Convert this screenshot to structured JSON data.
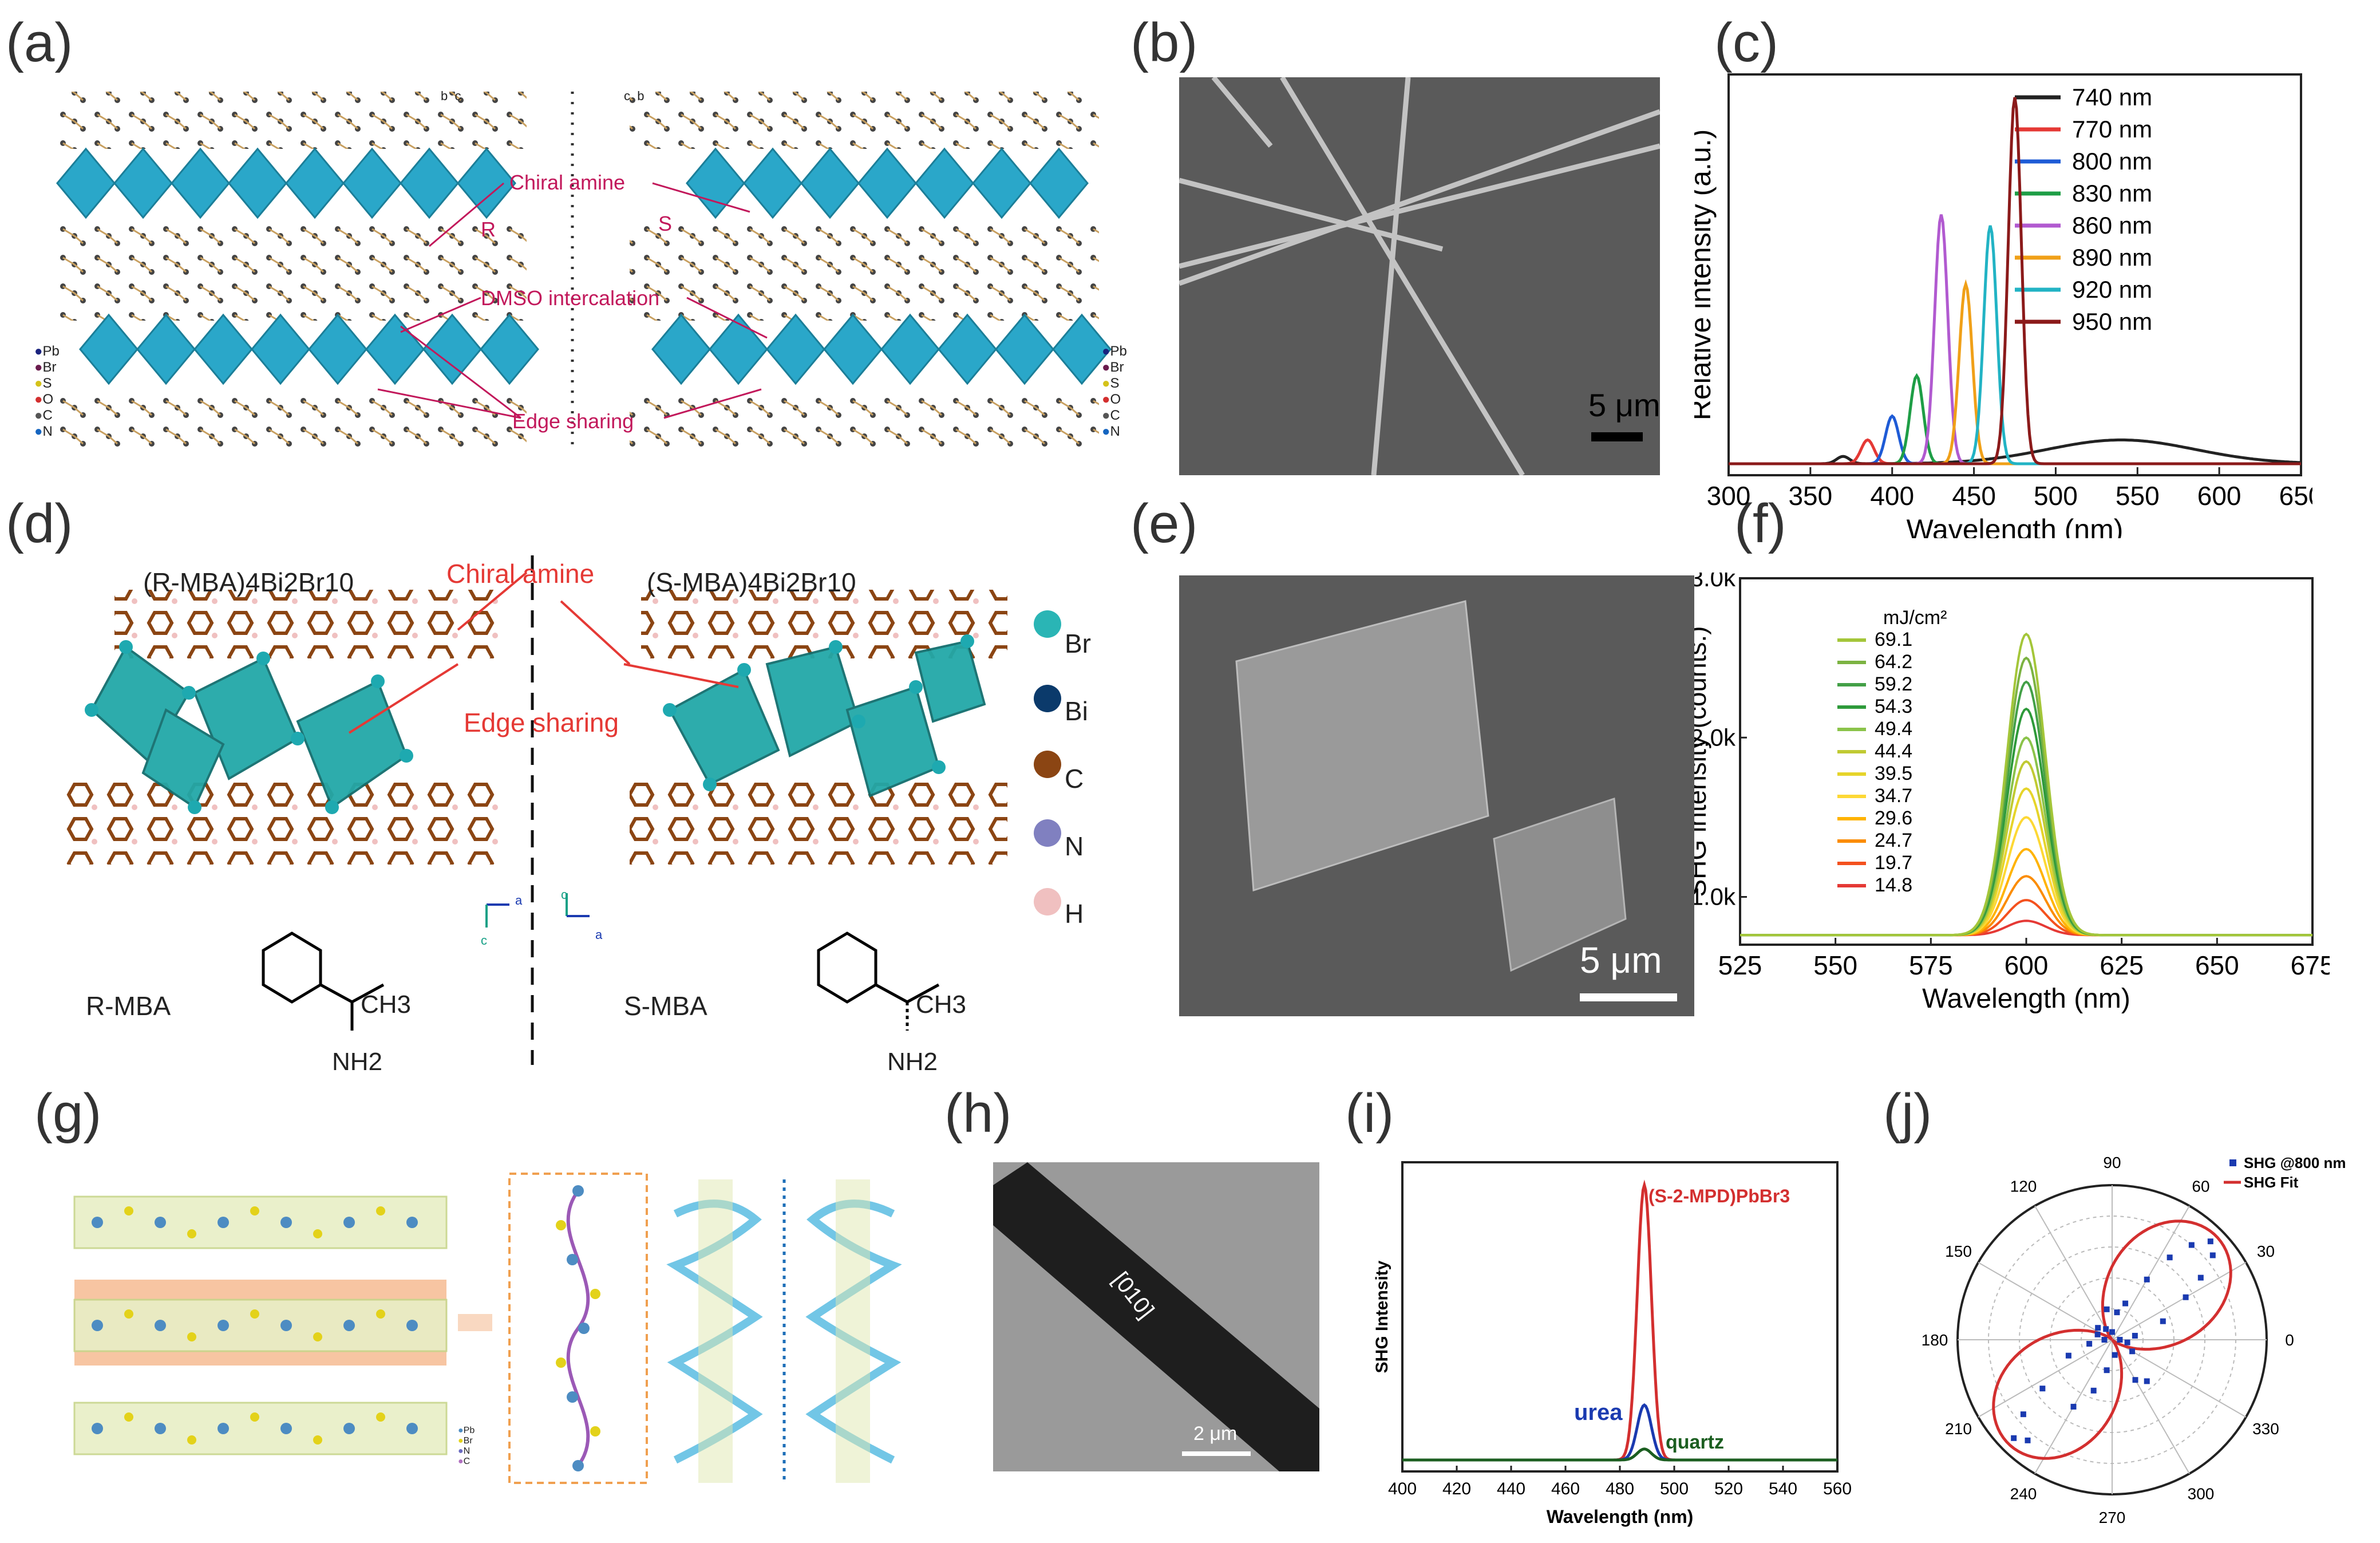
{
  "panels": {
    "a": {
      "label": "(a)",
      "axis_left": [
        "b",
        "c"
      ],
      "axis_right": [
        "c",
        "b"
      ],
      "annotations": {
        "chiral": "Chiral amine",
        "dmso": "DMSO intercalation",
        "edge": "Edge sharing",
        "r": "R",
        "s": "S"
      },
      "legend": [
        "Pb",
        "Br",
        "S",
        "O",
        "C",
        "N"
      ],
      "legend_colors": [
        "#1a237e",
        "#6a1b4d",
        "#d4c21a",
        "#d32f2f",
        "#555555",
        "#1565c0"
      ]
    },
    "b": {
      "label": "(b)",
      "scalebar": "5 μm"
    },
    "c": {
      "label": "(c)"
    },
    "d": {
      "label": "(d)",
      "title_left": "(R-MBA)4Bi2Br10",
      "title_right": "(S-MBA)4Bi2Br10",
      "chiral": "Chiral amine",
      "edge": "Edge sharing",
      "r_mba": "R-MBA",
      "s_mba": "S-MBA",
      "ch3": "CH3",
      "nh2": "NH2",
      "axis_left": [
        "a",
        "c"
      ],
      "axis_right": [
        "c",
        "a"
      ],
      "legend": [
        "Br",
        "Bi",
        "C",
        "N",
        "H"
      ],
      "legend_colors": [
        "#2ab5b5",
        "#0b3a6b",
        "#8b4513",
        "#8080c0",
        "#f0c0c0"
      ]
    },
    "e": {
      "label": "(e)",
      "scalebar": "5 μm"
    },
    "f": {
      "label": "(f)"
    },
    "g": {
      "label": "(g)",
      "legend": [
        "Pb",
        "Br",
        "N",
        "C"
      ]
    },
    "h": {
      "label": "(h)",
      "direction": "[010]",
      "scalebar": "2 μm"
    },
    "i": {
      "label": "(i)"
    },
    "j": {
      "label": "(j)"
    }
  },
  "chart_data": [
    {
      "id": "c",
      "type": "line",
      "xlabel": "Wavelength (nm)",
      "ylabel": "Relative intensity (a.u.)",
      "xlim": [
        300,
        650
      ],
      "xticks": [
        300,
        350,
        400,
        450,
        500,
        550,
        600,
        650
      ],
      "series": [
        {
          "name": "740 nm",
          "color": "#222222",
          "peak_x": 370,
          "peak_y": 0.02,
          "broad_x": 540,
          "broad_y": 0.065
        },
        {
          "name": "770 nm",
          "color": "#e53935",
          "peak_x": 385,
          "peak_y": 0.065
        },
        {
          "name": "800 nm",
          "color": "#1e5bd6",
          "peak_x": 400,
          "peak_y": 0.13
        },
        {
          "name": "830 nm",
          "color": "#1e9e46",
          "peak_x": 415,
          "peak_y": 0.24
        },
        {
          "name": "860 nm",
          "color": "#b15ad0",
          "peak_x": 430,
          "peak_y": 0.68
        },
        {
          "name": "890 nm",
          "color": "#f0a018",
          "peak_x": 445,
          "peak_y": 0.49
        },
        {
          "name": "920 nm",
          "color": "#22b3c4",
          "peak_x": 460,
          "peak_y": 0.65
        },
        {
          "name": "950 nm",
          "color": "#8b1a1a",
          "peak_x": 475,
          "peak_y": 1.0
        }
      ]
    },
    {
      "id": "f",
      "type": "line",
      "xlabel": "Wavelength (nm)",
      "ylabel": "SHG intensity (counts.)",
      "xlim": [
        525,
        675
      ],
      "xticks": [
        525,
        550,
        575,
        600,
        625,
        650,
        675
      ],
      "ylim": [
        700,
        3000
      ],
      "yticks": [
        1000,
        2000,
        3000
      ],
      "ytick_labels": [
        "1.0k",
        "2.0k",
        "3.0k"
      ],
      "legend_title": "mJ/cm²",
      "series": [
        {
          "name": "69.1",
          "value": 2650,
          "color": "#a4c639"
        },
        {
          "name": "64.2",
          "value": 2500,
          "color": "#7cb342"
        },
        {
          "name": "59.2",
          "value": 2350,
          "color": "#43a047"
        },
        {
          "name": "54.3",
          "value": 2180,
          "color": "#2e9a3a"
        },
        {
          "name": "49.4",
          "value": 2000,
          "color": "#8bc34a"
        },
        {
          "name": "44.4",
          "value": 1850,
          "color": "#c0ca33"
        },
        {
          "name": "39.5",
          "value": 1680,
          "color": "#e6d42a"
        },
        {
          "name": "34.7",
          "value": 1500,
          "color": "#fdd835"
        },
        {
          "name": "29.6",
          "value": 1300,
          "color": "#ffb300"
        },
        {
          "name": "24.7",
          "value": 1130,
          "color": "#fb8c00"
        },
        {
          "name": "19.7",
          "value": 980,
          "color": "#f4511e"
        },
        {
          "name": "14.8",
          "value": 850,
          "color": "#e53935"
        }
      ]
    },
    {
      "id": "i",
      "type": "line",
      "xlabel": "Wavelength (nm)",
      "ylabel": "SHG Intensity",
      "xlim": [
        400,
        560
      ],
      "xticks": [
        400,
        420,
        440,
        460,
        480,
        500,
        520,
        540,
        560
      ],
      "series": [
        {
          "name": "(S-2-MPD)PbBr3",
          "peak_x": 489,
          "peak_y": 1.0,
          "color": "#d32f2f"
        },
        {
          "name": "urea",
          "peak_x": 489,
          "peak_y": 0.2,
          "color": "#1a3ab0"
        },
        {
          "name": "quartz",
          "peak_x": 489,
          "peak_y": 0.04,
          "color": "#1b5e20"
        }
      ]
    },
    {
      "id": "j",
      "type": "scatter",
      "angles": [
        "0",
        "30",
        "60",
        "90",
        "120",
        "150",
        "180",
        "210",
        "240",
        "270",
        "300",
        "330"
      ],
      "series": [
        {
          "name": "SHG @800 nm",
          "color": "#1a3ab0"
        },
        {
          "name": "SHG Fit",
          "color": "#d32f2f"
        }
      ],
      "points_deg_r": [
        [
          45,
          0.9
        ],
        [
          40,
          0.85
        ],
        [
          50,
          0.8
        ],
        [
          35,
          0.7
        ],
        [
          55,
          0.65
        ],
        [
          30,
          0.55
        ],
        [
          60,
          0.45
        ],
        [
          20,
          0.35
        ],
        [
          70,
          0.25
        ],
        [
          90,
          0.05
        ],
        [
          120,
          0.08
        ],
        [
          160,
          0.1
        ],
        [
          200,
          0.3
        ],
        [
          215,
          0.55
        ],
        [
          225,
          0.9
        ],
        [
          230,
          0.85
        ],
        [
          220,
          0.75
        ],
        [
          240,
          0.5
        ],
        [
          250,
          0.35
        ],
        [
          260,
          0.2
        ],
        [
          280,
          0.1
        ],
        [
          300,
          0.3
        ],
        [
          310,
          0.35
        ],
        [
          330,
          0.15
        ],
        [
          350,
          0.1
        ],
        [
          10,
          0.15
        ],
        [
          0,
          0.05
        ],
        [
          180,
          0.05
        ],
        [
          190,
          0.15
        ],
        [
          140,
          0.12
        ],
        [
          100,
          0.2
        ],
        [
          80,
          0.18
        ]
      ]
    }
  ]
}
